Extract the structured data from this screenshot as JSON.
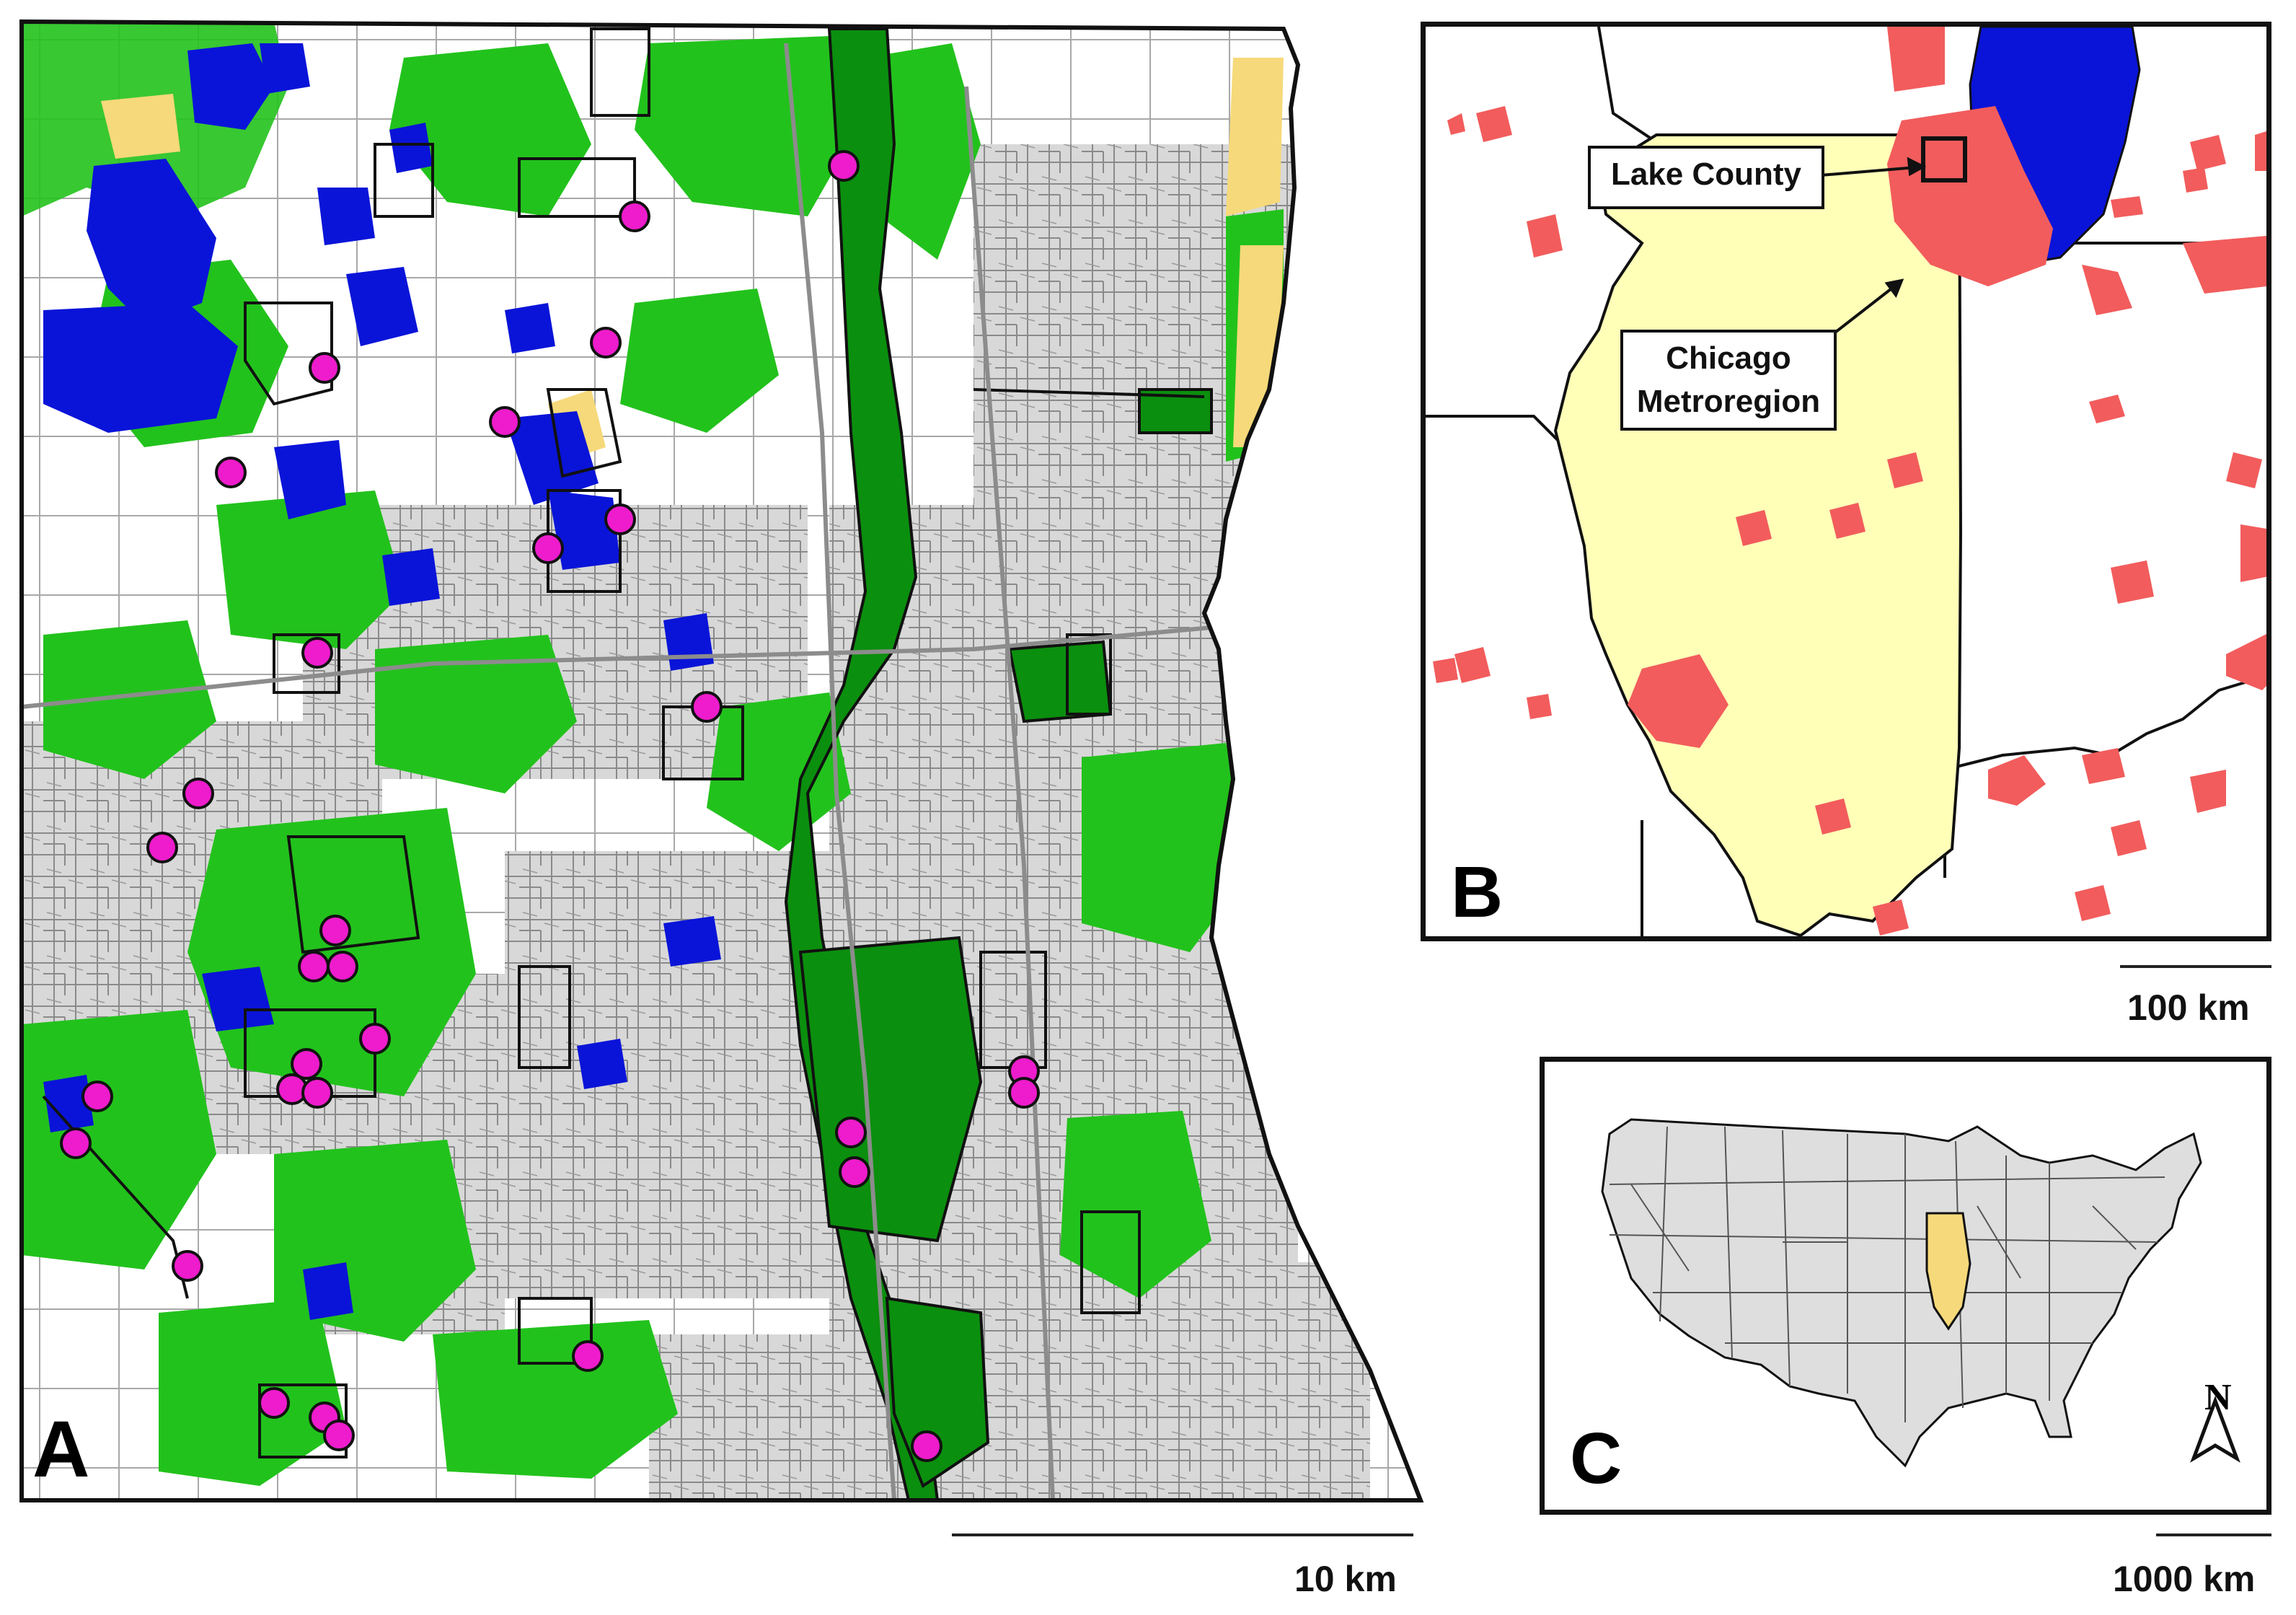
{
  "panel_a": {
    "letter": "A",
    "scale_label": "10 km"
  },
  "panel_b": {
    "letter": "B",
    "scale_label": "100 km",
    "callout_lake_county": "Lake County",
    "callout_chicago_line1": "Chicago",
    "callout_chicago_line2": "Metroregion"
  },
  "panel_c": {
    "letter": "C",
    "scale_label": "1000 km",
    "north_label": "N"
  },
  "colors": {
    "water": "#0a14d8",
    "vegetation": "#22c21c",
    "dark_vegetation": "#0b8f0e",
    "sand": "#f6d97a",
    "urban": "#d4d4d4",
    "site_marker": "#ee1ccc",
    "metro": "#f25c5c",
    "illinois": "#ffffb8",
    "us_states": "#dedede"
  },
  "legend_icons": [
    "site-marker-icon",
    "north-arrow-icon"
  ]
}
